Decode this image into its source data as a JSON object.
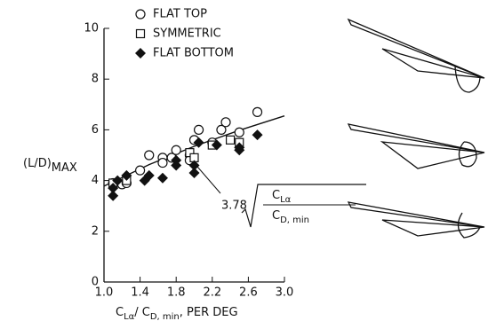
{
  "chart_data": {
    "type": "scatter",
    "xlim": [
      1,
      3
    ],
    "ylim": [
      0,
      10
    ],
    "xticks": [
      {
        "value": 1,
        "label": "1.0"
      },
      1.4,
      1.8,
      2.2,
      2.6,
      {
        "value": 3,
        "label": "3.0"
      }
    ],
    "yticks": [
      0,
      2,
      4,
      6,
      8,
      10
    ],
    "y_label": "(L/D)",
    "y_label_sub": "MAX",
    "x_label": [
      "C",
      "Lα",
      "/ C",
      "D, min",
      ", PER DEG"
    ],
    "series": [
      {
        "name": "FLAT TOP",
        "marker": "circle",
        "color": "#111",
        "x": [
          1.1,
          1.2,
          1.25,
          1.4,
          1.5,
          1.65,
          1.65,
          1.75,
          1.8,
          1.95,
          1.95,
          2.0,
          2.05,
          2.2,
          2.3,
          2.35,
          2.5,
          2.7
        ],
        "values": [
          3.9,
          3.85,
          3.9,
          4.4,
          5.0,
          4.9,
          4.7,
          4.9,
          5.2,
          5.0,
          4.8,
          5.6,
          6.0,
          5.5,
          6.0,
          6.3,
          5.9,
          6.7
        ]
      },
      {
        "name": "SYMMETRIC",
        "marker": "square",
        "color": "#111",
        "x": [
          1.1,
          1.25,
          1.95,
          2.0,
          2.2,
          2.4,
          2.5
        ],
        "values": [
          3.9,
          4.0,
          5.1,
          4.9,
          5.4,
          5.6,
          5.5
        ]
      },
      {
        "name": "FLAT BOTTOM",
        "marker": "diamond",
        "color": "#111",
        "x": [
          1.1,
          1.1,
          1.15,
          1.25,
          1.45,
          1.5,
          1.65,
          1.8,
          1.8,
          2.0,
          2.0,
          2.05,
          2.25,
          2.5,
          2.5,
          2.7
        ],
        "values": [
          3.4,
          3.7,
          4.0,
          4.2,
          4.0,
          4.2,
          4.1,
          4.6,
          4.8,
          4.3,
          4.6,
          5.5,
          5.4,
          5.3,
          5.2,
          5.8
        ]
      }
    ],
    "fit": {
      "x": [
        1.0,
        1.5,
        2.0,
        2.5,
        3.0
      ],
      "values": [
        3.78,
        4.63,
        5.35,
        5.98,
        6.55
      ]
    },
    "annotation": {
      "coef": "3.78",
      "num": [
        "C",
        "Lα"
      ],
      "den": [
        "C",
        "D, min"
      ]
    },
    "diagram_labels": [
      "FLAT TOP",
      "SYMMETRIC",
      "FLAT BOTTOM"
    ]
  }
}
